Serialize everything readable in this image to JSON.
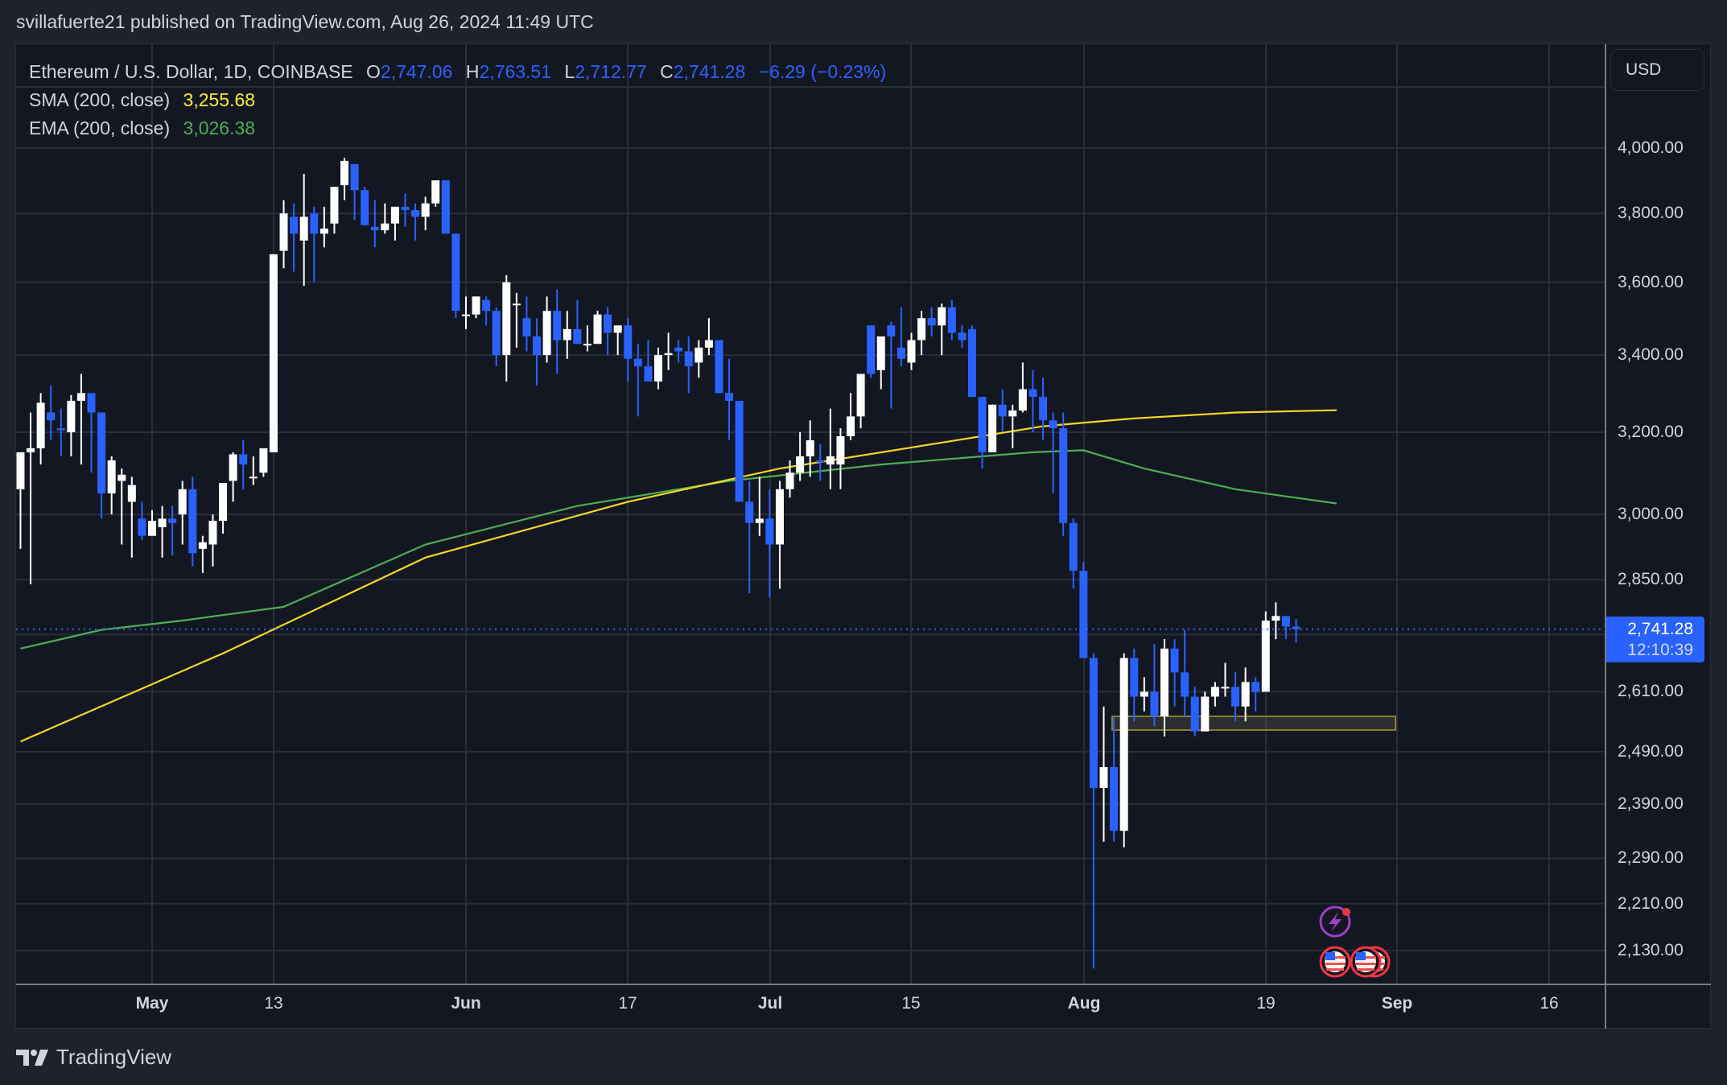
{
  "header": {
    "published": "svillafuerte21 published on TradingView.com, Aug 26, 2024 11:49 UTC"
  },
  "legend": {
    "symbol": "Ethereum / U.S. Dollar, 1D, COINBASE",
    "o_label": "O",
    "o_value": "2,747.06",
    "h_label": "H",
    "h_value": "2,763.51",
    "l_label": "L",
    "l_value": "2,712.77",
    "c_label": "C",
    "c_value": "2,741.28",
    "change": "−6.29 (−0.23%)",
    "sma_label": "SMA (200, close)",
    "sma_value": "3,255.68",
    "ema_label": "EMA (200, close)",
    "ema_value": "3,026.38"
  },
  "price_axis": {
    "currency": "USD",
    "ticks": [
      "4,000.00",
      "3,800.00",
      "3,600.00",
      "3,400.00",
      "3,200.00",
      "3,000.00",
      "2,850.00",
      "2,610.00",
      "2,490.00",
      "2,390.00",
      "2,290.00",
      "2,210.00",
      "2,130.00"
    ],
    "last_price": "2,741.28",
    "countdown": "12:10:39"
  },
  "time_axis": {
    "ticks": [
      {
        "label": "May",
        "bold": true
      },
      {
        "label": "13",
        "bold": false
      },
      {
        "label": "Jun",
        "bold": true
      },
      {
        "label": "17",
        "bold": false
      },
      {
        "label": "Jul",
        "bold": true
      },
      {
        "label": "15",
        "bold": false
      },
      {
        "label": "Aug",
        "bold": true
      },
      {
        "label": "19",
        "bold": false
      },
      {
        "label": "Sep",
        "bold": true
      },
      {
        "label": "16",
        "bold": false
      }
    ]
  },
  "footer": {
    "brand": "TradingView"
  },
  "colors": {
    "up": "#ffffff",
    "down": "#2962ff",
    "sma": "#f5d623",
    "ema": "#4caf50",
    "zone_border": "#8a7d2e",
    "grid": "#2a2e39"
  },
  "chart_data": {
    "type": "candlestick",
    "title": "Ethereum / U.S. Dollar, 1D, COINBASE",
    "xlabel": "",
    "ylabel": "USD",
    "scale": "log",
    "ylim": [
      2090,
      4060
    ],
    "grid": true,
    "legend_position": "top-left",
    "start_date": "2024-04-18",
    "ohlc": [
      [
        3060,
        3130,
        2920,
        3150
      ],
      [
        3150,
        3250,
        2840,
        3160
      ],
      [
        3160,
        3300,
        3120,
        3275
      ],
      [
        3250,
        3320,
        3180,
        3230
      ],
      [
        3210,
        3260,
        3140,
        3205
      ],
      [
        3200,
        3295,
        3140,
        3280
      ],
      [
        3280,
        3350,
        3120,
        3300
      ],
      [
        3300,
        3300,
        3100,
        3250
      ],
      [
        3250,
        3240,
        2990,
        3050
      ],
      [
        3050,
        3140,
        3000,
        3130
      ],
      [
        3080,
        3110,
        2930,
        3095
      ],
      [
        3030,
        3090,
        2900,
        3070
      ],
      [
        2990,
        3030,
        2940,
        2950
      ],
      [
        2950,
        3010,
        2960,
        2985
      ],
      [
        2970,
        3020,
        2900,
        2990
      ],
      [
        2990,
        3020,
        2905,
        2980
      ],
      [
        3000,
        3080,
        2930,
        3060
      ],
      [
        3060,
        3090,
        2880,
        2910
      ],
      [
        2920,
        2950,
        2865,
        2935
      ],
      [
        2930,
        3000,
        2880,
        2985
      ],
      [
        2985,
        3060,
        2955,
        3075
      ],
      [
        3080,
        3150,
        3030,
        3145
      ],
      [
        3145,
        3180,
        3060,
        3120
      ],
      [
        3090,
        3140,
        3070,
        3090
      ],
      [
        3100,
        3160,
        3090,
        3160
      ],
      [
        3150,
        3670,
        3150,
        3680
      ],
      [
        3690,
        3840,
        3640,
        3800
      ],
      [
        3790,
        3830,
        3630,
        3740
      ],
      [
        3720,
        3920,
        3590,
        3790
      ],
      [
        3800,
        3820,
        3600,
        3740
      ],
      [
        3740,
        3820,
        3700,
        3755
      ],
      [
        3770,
        3870,
        3740,
        3880
      ],
      [
        3885,
        3970,
        3840,
        3960
      ],
      [
        3950,
        3930,
        3780,
        3870
      ],
      [
        3870,
        3880,
        3770,
        3765
      ],
      [
        3760,
        3840,
        3700,
        3750
      ],
      [
        3750,
        3830,
        3740,
        3770
      ],
      [
        3770,
        3800,
        3720,
        3820
      ],
      [
        3820,
        3860,
        3760,
        3810
      ],
      [
        3810,
        3830,
        3720,
        3790
      ],
      [
        3790,
        3850,
        3750,
        3830
      ],
      [
        3830,
        3900,
        3820,
        3900
      ],
      [
        3900,
        3880,
        3740,
        3740
      ],
      [
        3740,
        3730,
        3500,
        3520
      ],
      [
        3510,
        3560,
        3470,
        3510
      ],
      [
        3510,
        3560,
        3500,
        3560
      ],
      [
        3550,
        3560,
        3480,
        3520
      ],
      [
        3520,
        3530,
        3370,
        3400
      ],
      [
        3400,
        3620,
        3330,
        3600
      ],
      [
        3540,
        3570,
        3420,
        3540
      ],
      [
        3500,
        3560,
        3410,
        3450
      ],
      [
        3450,
        3500,
        3320,
        3400
      ],
      [
        3400,
        3560,
        3380,
        3520
      ],
      [
        3520,
        3580,
        3350,
        3440
      ],
      [
        3440,
        3520,
        3390,
        3470
      ],
      [
        3470,
        3550,
        3440,
        3430
      ],
      [
        3430,
        3480,
        3410,
        3430
      ],
      [
        3430,
        3520,
        3440,
        3510
      ],
      [
        3510,
        3530,
        3400,
        3460
      ],
      [
        3460,
        3480,
        3400,
        3480
      ],
      [
        3480,
        3500,
        3330,
        3390
      ],
      [
        3390,
        3430,
        3240,
        3370
      ],
      [
        3370,
        3440,
        3330,
        3330
      ],
      [
        3330,
        3420,
        3310,
        3400
      ],
      [
        3400,
        3460,
        3360,
        3405
      ],
      [
        3420,
        3440,
        3380,
        3410
      ],
      [
        3410,
        3450,
        3300,
        3370
      ],
      [
        3380,
        3440,
        3340,
        3420
      ],
      [
        3420,
        3500,
        3400,
        3440
      ],
      [
        3440,
        3430,
        3300,
        3300
      ],
      [
        3300,
        3390,
        3180,
        3280
      ],
      [
        3280,
        3270,
        3050,
        3030
      ],
      [
        3030,
        3080,
        2820,
        2980
      ],
      [
        2980,
        3090,
        2950,
        2990
      ],
      [
        2990,
        3060,
        2810,
        2930
      ],
      [
        2930,
        3080,
        2830,
        3060
      ],
      [
        3060,
        3130,
        3040,
        3100
      ],
      [
        3100,
        3200,
        3080,
        3140
      ],
      [
        3140,
        3230,
        3090,
        3180
      ],
      [
        3130,
        3170,
        3080,
        3125
      ],
      [
        3120,
        3260,
        3060,
        3140
      ],
      [
        3120,
        3210,
        3060,
        3190
      ],
      [
        3190,
        3300,
        3180,
        3240
      ],
      [
        3240,
        3340,
        3210,
        3350
      ],
      [
        3480,
        3480,
        3340,
        3350
      ],
      [
        3360,
        3410,
        3310,
        3450
      ],
      [
        3480,
        3490,
        3260,
        3450
      ],
      [
        3420,
        3530,
        3370,
        3390
      ],
      [
        3380,
        3460,
        3360,
        3440
      ],
      [
        3440,
        3520,
        3400,
        3500
      ],
      [
        3500,
        3530,
        3450,
        3480
      ],
      [
        3480,
        3540,
        3400,
        3530
      ],
      [
        3530,
        3550,
        3440,
        3460
      ],
      [
        3460,
        3480,
        3420,
        3440
      ],
      [
        3470,
        3480,
        3300,
        3290
      ],
      [
        3290,
        3230,
        3110,
        3150
      ],
      [
        3150,
        3260,
        3150,
        3270
      ],
      [
        3270,
        3310,
        3200,
        3240
      ],
      [
        3240,
        3270,
        3160,
        3255
      ],
      [
        3255,
        3380,
        3250,
        3310
      ],
      [
        3310,
        3360,
        3200,
        3290
      ],
      [
        3290,
        3340,
        3180,
        3230
      ],
      [
        3230,
        3250,
        3050,
        3210
      ],
      [
        3210,
        3250,
        2950,
        2980
      ],
      [
        2980,
        2990,
        2830,
        2870
      ],
      [
        2870,
        2890,
        2690,
        2680
      ],
      [
        2680,
        2690,
        2100,
        2420
      ],
      [
        2420,
        2580,
        2320,
        2460
      ],
      [
        2460,
        2560,
        2320,
        2340
      ],
      [
        2340,
        2690,
        2310,
        2680
      ],
      [
        2680,
        2700,
        2550,
        2600
      ],
      [
        2600,
        2640,
        2570,
        2610
      ],
      [
        2610,
        2710,
        2540,
        2560
      ],
      [
        2560,
        2720,
        2520,
        2700
      ],
      [
        2700,
        2720,
        2580,
        2650
      ],
      [
        2650,
        2740,
        2560,
        2600
      ],
      [
        2600,
        2620,
        2520,
        2530
      ],
      [
        2530,
        2610,
        2560,
        2600
      ],
      [
        2600,
        2630,
        2580,
        2620
      ],
      [
        2620,
        2670,
        2600,
        2620
      ],
      [
        2620,
        2650,
        2550,
        2580
      ],
      [
        2580,
        2660,
        2550,
        2630
      ],
      [
        2630,
        2640,
        2570,
        2610
      ],
      [
        2610,
        2780,
        2620,
        2760
      ],
      [
        2760,
        2800,
        2720,
        2770
      ],
      [
        2770,
        2760,
        2720,
        2747
      ],
      [
        2747,
        2763.51,
        2712.77,
        2741.28
      ]
    ],
    "sma_200": {
      "label": "SMA (200, close)",
      "last": 3255.68,
      "points": [
        [
          0,
          2510
        ],
        [
          20,
          2690
        ],
        [
          40,
          2900
        ],
        [
          60,
          3030
        ],
        [
          75,
          3110
        ],
        [
          90,
          3170
        ],
        [
          101,
          3215
        ],
        [
          110,
          3235
        ],
        [
          120,
          3250
        ],
        [
          130,
          3256
        ]
      ]
    },
    "ema_200": {
      "label": "EMA (200, close)",
      "last": 3026.38,
      "points": [
        [
          0,
          2700
        ],
        [
          8,
          2740
        ],
        [
          16,
          2760
        ],
        [
          26,
          2790
        ],
        [
          40,
          2930
        ],
        [
          55,
          3020
        ],
        [
          70,
          3080
        ],
        [
          85,
          3120
        ],
        [
          100,
          3150
        ],
        [
          105,
          3155
        ],
        [
          111,
          3110
        ],
        [
          120,
          3060
        ],
        [
          130,
          3026
        ]
      ]
    },
    "support_zone": {
      "from_index": 106,
      "to_index": 134,
      "low": 2545,
      "high": 2575
    },
    "last_price": 2741.28
  }
}
